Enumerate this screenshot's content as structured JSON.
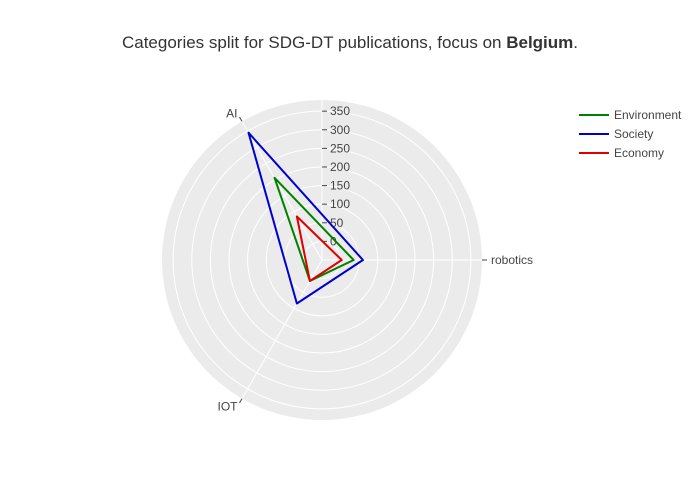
{
  "chart_data": {
    "type": "radar",
    "title_prefix": "Categories split for SDG-DT publications, focus on ",
    "title_bold": "Belgium",
    "title_suffix": ".",
    "categories": [
      "robotics",
      "AI",
      "IOT"
    ],
    "radial_range": [
      -50,
      380
    ],
    "radial_ticks": [
      "0",
      "50",
      "100",
      "150",
      "200",
      "250",
      "300",
      "350"
    ],
    "radial_tick_values": [
      0,
      50,
      100,
      150,
      200,
      250,
      300,
      350
    ],
    "series": [
      {
        "name": "Environment",
        "values": [
          35,
          205,
          15
        ],
        "color": "#008000"
      },
      {
        "name": "Society",
        "values": [
          60,
          345,
          85
        ],
        "color": "#0000cc"
      },
      {
        "name": "Economy",
        "values": [
          3,
          85,
          15
        ],
        "color": "#dd0000"
      }
    ],
    "legend_position": "top-right",
    "grid": true
  }
}
